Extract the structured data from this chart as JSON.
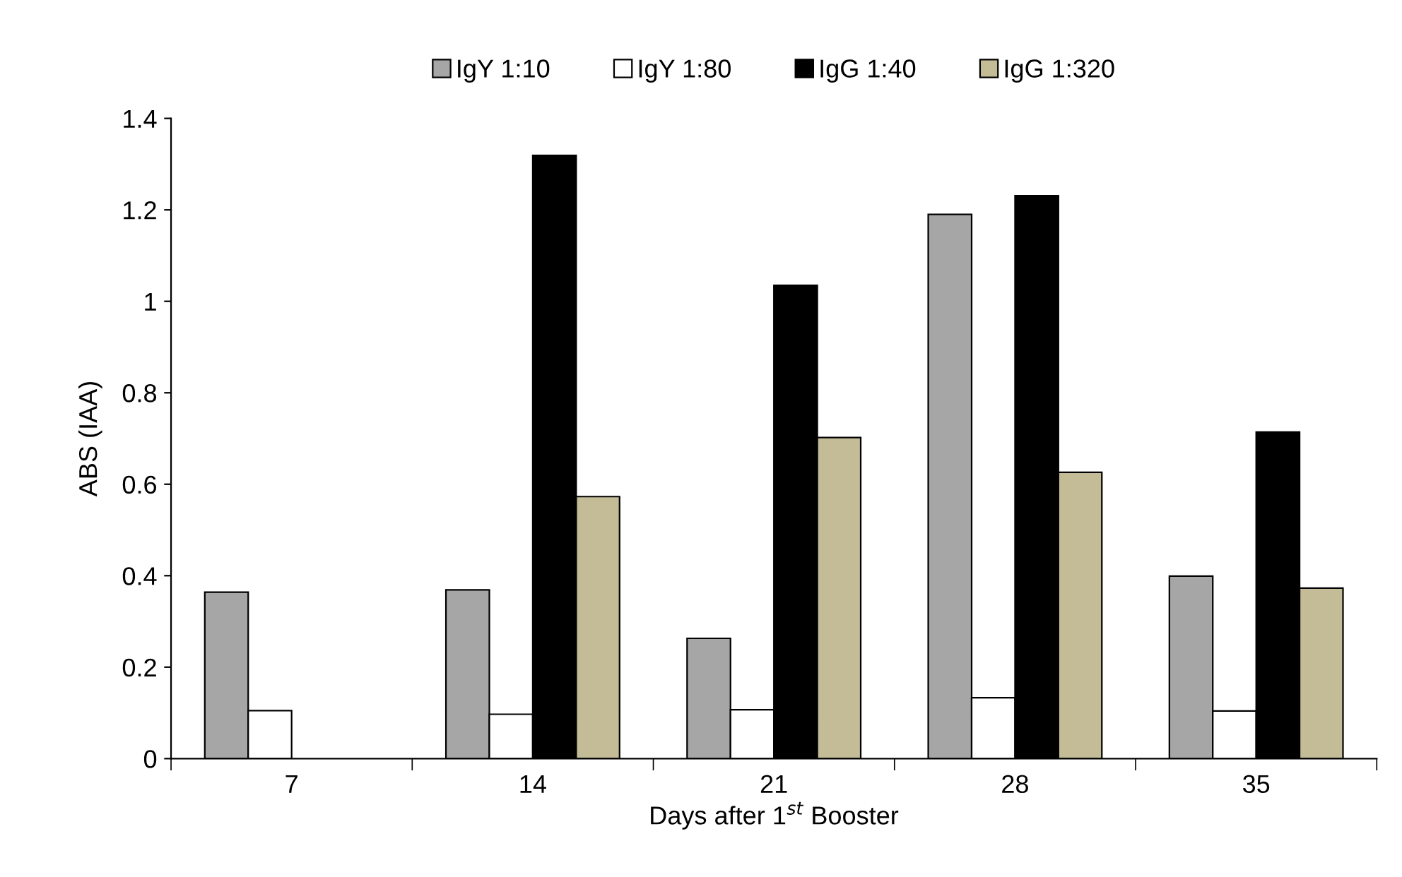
{
  "chart_data": {
    "type": "bar",
    "categories": [
      "7",
      "14",
      "21",
      "28",
      "35"
    ],
    "xlabel": "Days after 1$^{st}$ Booster",
    "ylabel": "ABS (IAA)",
    "ylim": [
      0,
      1.4
    ],
    "yticks": [
      {
        "value": 0,
        "label": "0"
      },
      0.2,
      0.4,
      0.6,
      0.8,
      {
        "value": 1,
        "label": "1"
      },
      1.2,
      1.4
    ],
    "grid": false,
    "legend": "top",
    "series": [
      {
        "name": "IgY 1:10",
        "color": "#a6a6a6",
        "values": [
          0.364,
          0.369,
          0.263,
          1.19,
          0.399
        ]
      },
      {
        "name": "IgY 1:80",
        "color": "#ffffff",
        "values": [
          0.105,
          0.097,
          0.107,
          0.133,
          0.104
        ]
      },
      {
        "name": "IgG 1:40",
        "color": "#000000",
        "values": [
          null,
          1.319,
          1.035,
          1.231,
          0.714
        ]
      },
      {
        "name": "IgG 1:320",
        "color": "#c4bc96",
        "values": [
          null,
          0.573,
          0.702,
          0.626,
          0.373
        ]
      }
    ]
  }
}
